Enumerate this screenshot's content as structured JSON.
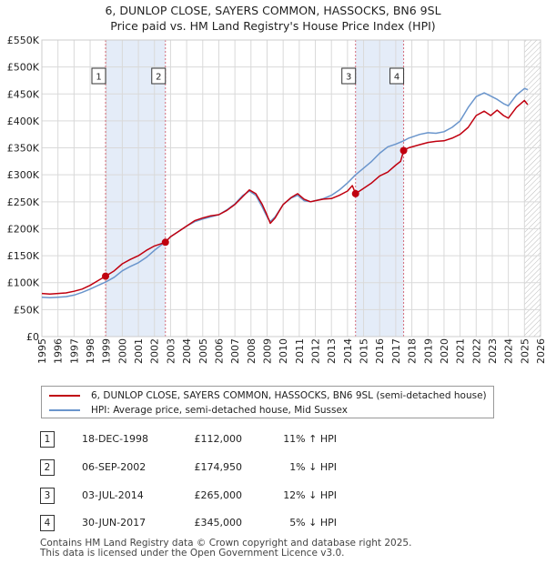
{
  "header": {
    "title_line1": "6, DUNLOP CLOSE, SAYERS COMMON, HASSOCKS, BN6 9SL",
    "title_line2": "Price paid vs. HM Land Registry's House Price Index (HPI)"
  },
  "colors": {
    "property": "#c0000f",
    "hpi": "#6a95cc",
    "shade": "#dbe6f6",
    "vline": "#d46a7a",
    "grid": "#d9d9d9"
  },
  "chart_data": {
    "type": "line",
    "title": "Price paid vs. HM Land Registry's House Price Index (HPI)",
    "xlim": [
      1995,
      2026
    ],
    "ylim": [
      0,
      550000
    ],
    "x_ticks": [
      "1995",
      "1996",
      "1997",
      "1998",
      "1999",
      "2000",
      "2001",
      "2002",
      "2003",
      "2004",
      "2005",
      "2006",
      "2007",
      "2008",
      "2009",
      "2010",
      "2011",
      "2012",
      "2013",
      "2014",
      "2015",
      "2016",
      "2017",
      "2018",
      "2019",
      "2020",
      "2021",
      "2022",
      "2023",
      "2024",
      "2025",
      "2026"
    ],
    "y_ticks": [
      0,
      50000,
      100000,
      150000,
      200000,
      250000,
      300000,
      350000,
      400000,
      450000,
      500000,
      550000
    ],
    "y_tick_labels": [
      "£0",
      "£50K",
      "£100K",
      "£150K",
      "£200K",
      "£250K",
      "£300K",
      "£350K",
      "£400K",
      "£450K",
      "£500K",
      "£550K"
    ],
    "shaded_ranges": [
      [
        1998.96,
        2002.68
      ],
      [
        2014.5,
        2017.49
      ]
    ],
    "forecast_start": 2025.0,
    "series": [
      {
        "name": "6, DUNLOP CLOSE, SAYERS COMMON, HASSOCKS, BN6 9SL (semi-detached house)",
        "color": "#c0000f",
        "points": [
          [
            1995.0,
            80000
          ],
          [
            1995.5,
            79000
          ],
          [
            1996.0,
            80000
          ],
          [
            1996.5,
            81000
          ],
          [
            1997.0,
            84000
          ],
          [
            1997.5,
            88000
          ],
          [
            1998.0,
            95000
          ],
          [
            1998.5,
            104000
          ],
          [
            1998.96,
            112000
          ],
          [
            1999.5,
            122000
          ],
          [
            2000.0,
            135000
          ],
          [
            2000.5,
            143000
          ],
          [
            2001.0,
            150000
          ],
          [
            2001.5,
            160000
          ],
          [
            2002.0,
            168000
          ],
          [
            2002.68,
            174950
          ],
          [
            2003.0,
            185000
          ],
          [
            2003.5,
            195000
          ],
          [
            2004.0,
            205000
          ],
          [
            2004.5,
            215000
          ],
          [
            2005.0,
            220000
          ],
          [
            2005.5,
            224000
          ],
          [
            2006.0,
            226000
          ],
          [
            2006.5,
            234000
          ],
          [
            2007.0,
            245000
          ],
          [
            2007.5,
            260000
          ],
          [
            2007.9,
            272000
          ],
          [
            2008.3,
            265000
          ],
          [
            2008.7,
            245000
          ],
          [
            2009.0,
            225000
          ],
          [
            2009.2,
            210000
          ],
          [
            2009.5,
            220000
          ],
          [
            2010.0,
            245000
          ],
          [
            2010.5,
            258000
          ],
          [
            2010.9,
            265000
          ],
          [
            2011.3,
            255000
          ],
          [
            2011.7,
            250000
          ],
          [
            2012.0,
            252000
          ],
          [
            2012.5,
            255000
          ],
          [
            2013.0,
            256000
          ],
          [
            2013.5,
            262000
          ],
          [
            2014.0,
            270000
          ],
          [
            2014.3,
            280000
          ],
          [
            2014.5,
            265000
          ],
          [
            2014.9,
            273000
          ],
          [
            2015.5,
            285000
          ],
          [
            2016.0,
            298000
          ],
          [
            2016.5,
            305000
          ],
          [
            2017.0,
            318000
          ],
          [
            2017.3,
            325000
          ],
          [
            2017.49,
            345000
          ],
          [
            2017.8,
            350000
          ],
          [
            2018.5,
            356000
          ],
          [
            2019.0,
            360000
          ],
          [
            2019.5,
            362000
          ],
          [
            2020.0,
            363000
          ],
          [
            2020.5,
            368000
          ],
          [
            2021.0,
            375000
          ],
          [
            2021.5,
            388000
          ],
          [
            2022.0,
            410000
          ],
          [
            2022.5,
            418000
          ],
          [
            2022.9,
            410000
          ],
          [
            2023.3,
            420000
          ],
          [
            2023.7,
            410000
          ],
          [
            2024.0,
            405000
          ],
          [
            2024.5,
            425000
          ],
          [
            2025.0,
            438000
          ],
          [
            2025.2,
            430000
          ]
        ]
      },
      {
        "name": "HPI: Average price, semi-detached house, Mid Sussex",
        "color": "#6a95cc",
        "points": [
          [
            1995.0,
            73000
          ],
          [
            1995.5,
            72000
          ],
          [
            1996.0,
            73000
          ],
          [
            1996.5,
            74000
          ],
          [
            1997.0,
            77000
          ],
          [
            1997.5,
            82000
          ],
          [
            1998.0,
            88000
          ],
          [
            1998.5,
            95000
          ],
          [
            1998.96,
            101000
          ],
          [
            1999.5,
            110000
          ],
          [
            2000.0,
            122000
          ],
          [
            2000.5,
            130000
          ],
          [
            2001.0,
            137000
          ],
          [
            2001.5,
            147000
          ],
          [
            2002.0,
            160000
          ],
          [
            2002.68,
            176000
          ],
          [
            2003.0,
            185000
          ],
          [
            2003.5,
            195000
          ],
          [
            2004.0,
            205000
          ],
          [
            2004.5,
            213000
          ],
          [
            2005.0,
            218000
          ],
          [
            2005.5,
            222000
          ],
          [
            2006.0,
            226000
          ],
          [
            2006.5,
            235000
          ],
          [
            2007.0,
            246000
          ],
          [
            2007.5,
            262000
          ],
          [
            2007.9,
            270000
          ],
          [
            2008.3,
            262000
          ],
          [
            2008.7,
            240000
          ],
          [
            2009.0,
            222000
          ],
          [
            2009.2,
            213000
          ],
          [
            2009.5,
            222000
          ],
          [
            2010.0,
            245000
          ],
          [
            2010.5,
            257000
          ],
          [
            2010.9,
            262000
          ],
          [
            2011.3,
            252000
          ],
          [
            2011.7,
            250000
          ],
          [
            2012.0,
            252000
          ],
          [
            2012.5,
            256000
          ],
          [
            2013.0,
            262000
          ],
          [
            2013.5,
            272000
          ],
          [
            2014.0,
            285000
          ],
          [
            2014.5,
            300000
          ],
          [
            2014.9,
            310000
          ],
          [
            2015.5,
            325000
          ],
          [
            2016.0,
            340000
          ],
          [
            2016.5,
            352000
          ],
          [
            2017.0,
            357000
          ],
          [
            2017.49,
            363000
          ],
          [
            2017.8,
            368000
          ],
          [
            2018.5,
            375000
          ],
          [
            2019.0,
            378000
          ],
          [
            2019.5,
            377000
          ],
          [
            2020.0,
            380000
          ],
          [
            2020.5,
            388000
          ],
          [
            2021.0,
            400000
          ],
          [
            2021.5,
            425000
          ],
          [
            2022.0,
            445000
          ],
          [
            2022.5,
            452000
          ],
          [
            2022.9,
            446000
          ],
          [
            2023.3,
            440000
          ],
          [
            2023.7,
            432000
          ],
          [
            2024.0,
            428000
          ],
          [
            2024.5,
            448000
          ],
          [
            2025.0,
            460000
          ],
          [
            2025.2,
            458000
          ]
        ]
      }
    ],
    "sales": [
      {
        "label": "1",
        "x": 1998.96,
        "y": 112000
      },
      {
        "label": "2",
        "x": 2002.68,
        "y": 174950
      },
      {
        "label": "3",
        "x": 2014.5,
        "y": 265000
      },
      {
        "label": "4",
        "x": 2017.49,
        "y": 345000
      }
    ]
  },
  "legend": {
    "property_label": "6, DUNLOP CLOSE, SAYERS COMMON, HASSOCKS, BN6 9SL (semi-detached house)",
    "hpi_label": "HPI: Average price, semi-detached house, Mid Sussex"
  },
  "transactions": [
    {
      "num": "1",
      "date": "18-DEC-1998",
      "price": "£112,000",
      "hpi": "11% ↑ HPI"
    },
    {
      "num": "2",
      "date": "06-SEP-2002",
      "price": "£174,950",
      "hpi": "1% ↓ HPI"
    },
    {
      "num": "3",
      "date": "03-JUL-2014",
      "price": "£265,000",
      "hpi": "12% ↓ HPI"
    },
    {
      "num": "4",
      "date": "30-JUN-2017",
      "price": "£345,000",
      "hpi": "5% ↓ HPI"
    }
  ],
  "footer": {
    "line1": "Contains HM Land Registry data © Crown copyright and database right 2025.",
    "line2": "This data is licensed under the Open Government Licence v3.0."
  }
}
